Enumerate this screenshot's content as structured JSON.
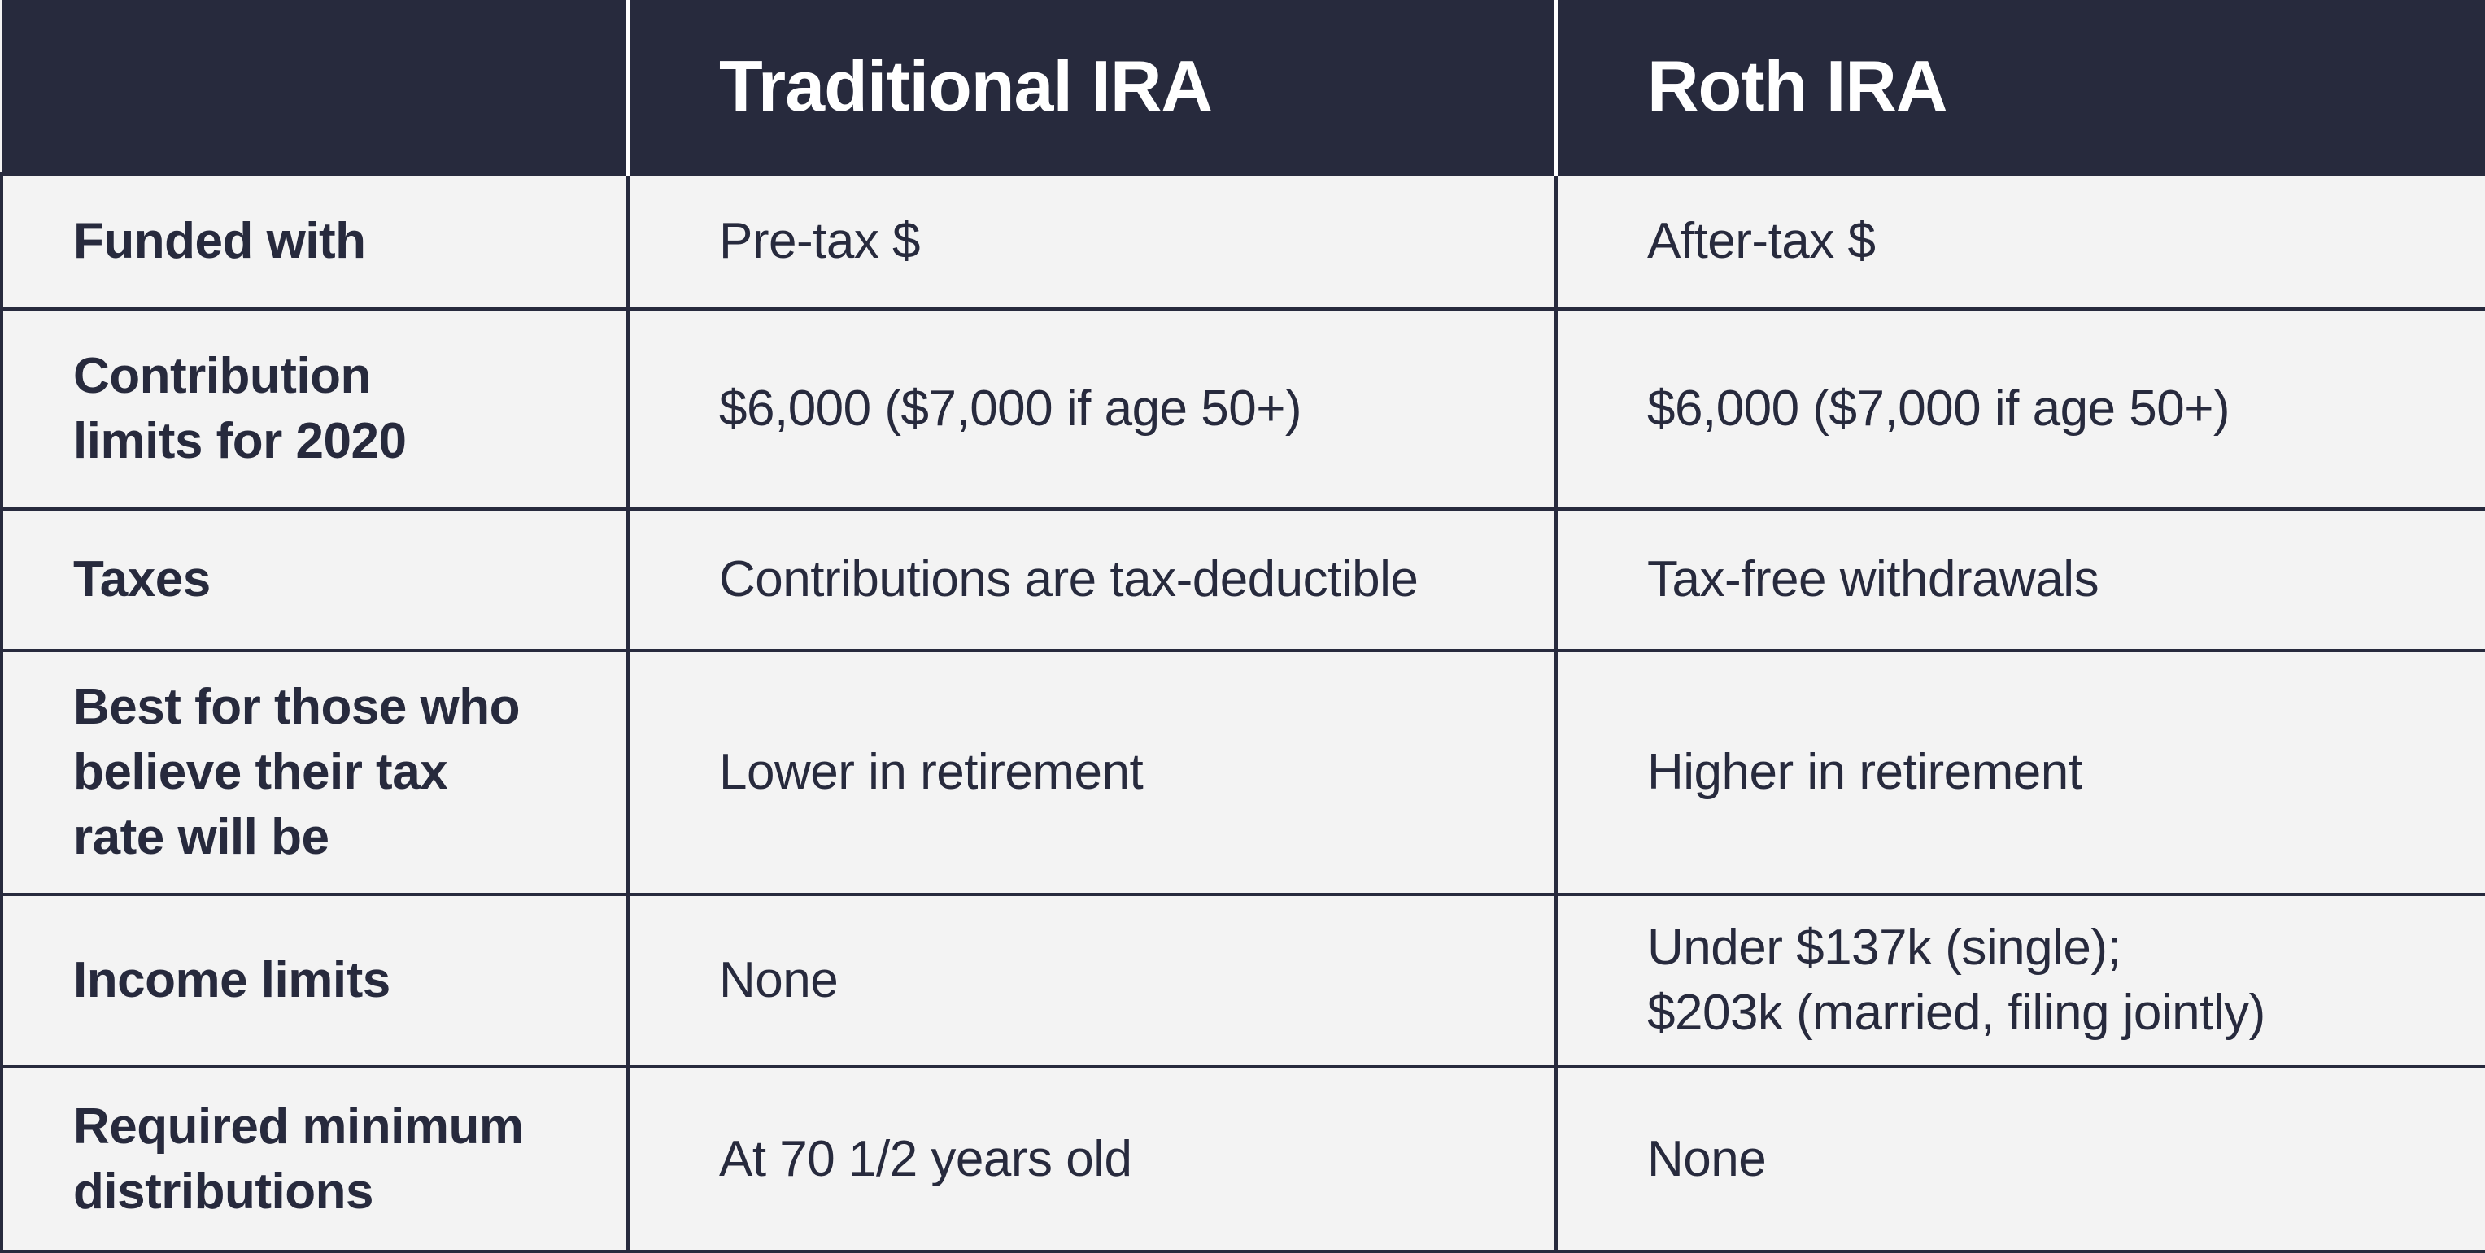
{
  "table": {
    "header": {
      "corner": "",
      "col1": "Traditional IRA",
      "col2": "Roth IRA"
    },
    "rows": [
      {
        "label": "Funded with",
        "traditional": "Pre-tax $",
        "roth": "After-tax $"
      },
      {
        "label": "Contribution\nlimits for  2020",
        "traditional": "$6,000 ($7,000 if age 50+)",
        "roth": "$6,000 ($7,000 if age 50+)"
      },
      {
        "label": "Taxes",
        "traditional": "Contributions are  tax-deductible",
        "roth": "Tax-free withdrawals"
      },
      {
        "label": "Best for those who\nbelieve their tax\nrate will be",
        "traditional": "Lower in retirement",
        "roth": "Higher in retirement"
      },
      {
        "label": "Income limits",
        "traditional": "None",
        "roth": "Under $137k (single);\n$203k (married, filing jointly)"
      },
      {
        "label": "Required minimum\ndistributions",
        "traditional": "At 70 1/2 years old",
        "roth": "None"
      }
    ]
  },
  "colors": {
    "header_bg": "#272a3d",
    "header_text": "#ffffff",
    "cell_bg": "#f3f3f3",
    "text": "#272a3d",
    "grid": "#272a3d"
  }
}
